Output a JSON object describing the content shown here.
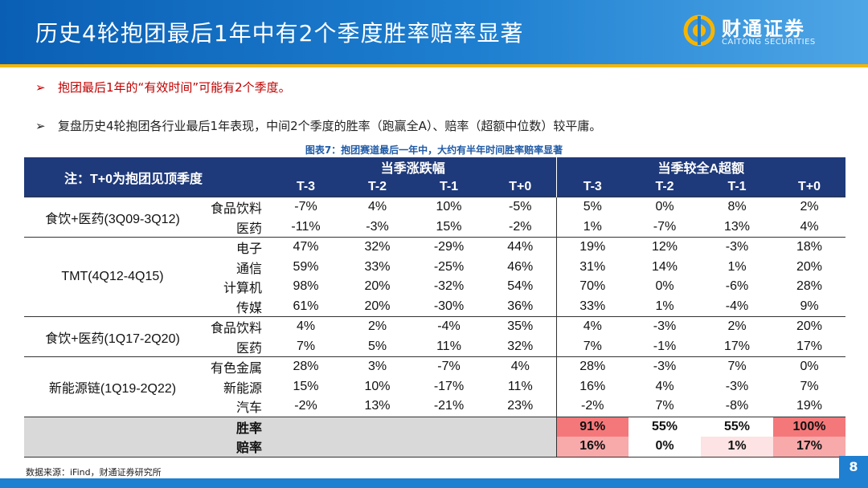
{
  "title": "历史4轮抱团最后1年中有2个季度胜率赔率显著",
  "logo": {
    "cn": "财通证券",
    "en": "CAITONG SECURITIES",
    "icon": "caitong-logo-icon"
  },
  "bullets": [
    {
      "arrow": "➢",
      "text": "抱团最后1年的“有效时间”可能有2个季度。",
      "color": "#c00000"
    },
    {
      "arrow": "➢",
      "text": "复盘历史4轮抱团各行业最后1年表现，中间2个季度的胜率（跑赢全A）、赔率（超额中位数）较平庸。",
      "color": "#222222"
    }
  ],
  "figure_caption": "图表7：抱团赛道最后一年中，大约有半年时间胜率赔率显著",
  "table": {
    "note": "注：T+0为抱团见顶季度",
    "group_headers": [
      "当季涨跌幅",
      "当季较全A超额"
    ],
    "col_headers": [
      "T-3",
      "T-2",
      "T-1",
      "T+0",
      "T-3",
      "T-2",
      "T-1",
      "T+0"
    ],
    "groups": [
      {
        "name": "食饮+医药(3Q09-3Q12)",
        "rows": [
          {
            "sector": "食品饮料",
            "values": [
              "-7%",
              "4%",
              "10%",
              "-5%",
              "5%",
              "0%",
              "8%",
              "2%"
            ]
          },
          {
            "sector": "医药",
            "values": [
              "-11%",
              "-3%",
              "15%",
              "-2%",
              "1%",
              "-7%",
              "13%",
              "4%"
            ]
          }
        ]
      },
      {
        "name": "TMT(4Q12-4Q15)",
        "rows": [
          {
            "sector": "电子",
            "values": [
              "47%",
              "32%",
              "-29%",
              "44%",
              "19%",
              "12%",
              "-3%",
              "18%"
            ]
          },
          {
            "sector": "通信",
            "values": [
              "59%",
              "33%",
              "-25%",
              "46%",
              "31%",
              "14%",
              "1%",
              "20%"
            ]
          },
          {
            "sector": "计算机",
            "values": [
              "98%",
              "20%",
              "-32%",
              "54%",
              "70%",
              "0%",
              "-6%",
              "28%"
            ]
          },
          {
            "sector": "传媒",
            "values": [
              "61%",
              "20%",
              "-30%",
              "36%",
              "33%",
              "1%",
              "-4%",
              "9%"
            ]
          }
        ]
      },
      {
        "name": "食饮+医药(1Q17-2Q20)",
        "rows": [
          {
            "sector": "食品饮料",
            "values": [
              "4%",
              "2%",
              "-4%",
              "35%",
              "4%",
              "-3%",
              "2%",
              "20%"
            ]
          },
          {
            "sector": "医药",
            "values": [
              "7%",
              "5%",
              "11%",
              "32%",
              "7%",
              "-1%",
              "17%",
              "17%"
            ]
          }
        ]
      },
      {
        "name": "新能源链(1Q19-2Q22)",
        "rows": [
          {
            "sector": "有色金属",
            "values": [
              "28%",
              "3%",
              "-7%",
              "4%",
              "28%",
              "-3%",
              "7%",
              "0%"
            ]
          },
          {
            "sector": "新能源",
            "values": [
              "15%",
              "10%",
              "-17%",
              "11%",
              "16%",
              "4%",
              "-3%",
              "7%"
            ]
          },
          {
            "sector": "汽车",
            "values": [
              "-2%",
              "13%",
              "-21%",
              "23%",
              "-2%",
              "7%",
              "-8%",
              "19%"
            ]
          }
        ]
      }
    ],
    "summary": [
      {
        "label": "胜率",
        "values": [
          "91%",
          "55%",
          "55%",
          "100%"
        ]
      },
      {
        "label": "赔率",
        "values": [
          "16%",
          "0%",
          "1%",
          "17%"
        ]
      }
    ]
  },
  "source": "数据来源：iFind，财通证券研究所",
  "page_number": "8",
  "colors": {
    "header_blue": "#1f7fd0",
    "table_header": "#1f3a7a",
    "accent_yellow": "#f7b500",
    "heat_high": "#f4787a"
  }
}
